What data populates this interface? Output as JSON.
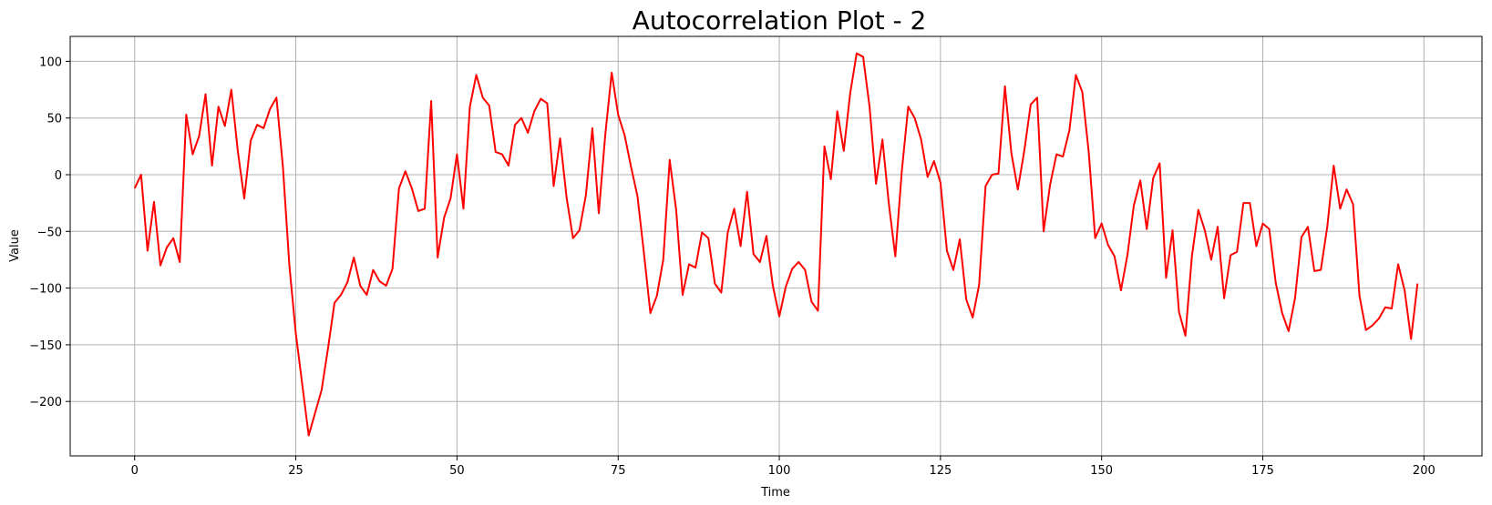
{
  "chart_data": {
    "type": "line",
    "title": "Autocorrelation Plot - 2",
    "xlabel": "Time",
    "ylabel": "Value",
    "xlim": [
      -10,
      209
    ],
    "ylim": [
      -248,
      122
    ],
    "xticks": [
      0,
      25,
      50,
      75,
      100,
      125,
      150,
      175,
      200
    ],
    "xtick_labels": [
      "0",
      "25",
      "50",
      "75",
      "100",
      "125",
      "150",
      "175",
      "200"
    ],
    "yticks": [
      100,
      50,
      0,
      -50,
      -100,
      -150,
      -200
    ],
    "ytick_labels": [
      "100",
      "50",
      "0",
      "−50",
      "−100",
      "−150",
      "−200"
    ],
    "grid": true,
    "legend": "none",
    "series": [
      {
        "color": "#ff0000",
        "x": [
          0,
          1,
          2,
          3,
          4,
          5,
          6,
          7,
          8,
          9,
          10,
          11,
          12,
          13,
          14,
          15,
          16,
          17,
          18,
          19,
          20,
          21,
          22,
          23,
          24,
          25,
          26,
          27,
          28,
          29,
          30,
          31,
          32,
          33,
          34,
          35,
          36,
          37,
          38,
          39,
          40,
          41,
          42,
          43,
          44,
          45,
          46,
          47,
          48,
          49,
          50,
          51,
          52,
          53,
          54,
          55,
          56,
          57,
          58,
          59,
          60,
          61,
          62,
          63,
          64,
          65,
          66,
          67,
          68,
          69,
          70,
          71,
          72,
          73,
          74,
          75,
          76,
          77,
          78,
          79,
          80,
          81,
          82,
          83,
          84,
          85,
          86,
          87,
          88,
          89,
          90,
          91,
          92,
          93,
          94,
          95,
          96,
          97,
          98,
          99,
          100,
          101,
          102,
          103,
          104,
          105,
          106,
          107,
          108,
          109,
          110,
          111,
          112,
          113,
          114,
          115,
          116,
          117,
          118,
          119,
          120,
          121,
          122,
          123,
          124,
          125,
          126,
          127,
          128,
          129,
          130,
          131,
          132,
          133,
          134,
          135,
          136,
          137,
          138,
          139,
          140,
          141,
          142,
          143,
          144,
          145,
          146,
          147,
          148,
          149,
          150,
          151,
          152,
          153,
          154,
          155,
          156,
          157,
          158,
          159,
          160,
          161,
          162,
          163,
          164,
          165,
          166,
          167,
          168,
          169,
          170,
          171,
          172,
          173,
          174,
          175,
          176,
          177,
          178,
          179,
          180,
          181,
          182,
          183,
          184,
          185,
          186,
          187,
          188,
          189,
          190,
          191,
          192,
          193,
          194,
          195,
          196,
          197,
          198,
          199
        ],
        "y": [
          -12,
          0,
          -67,
          -24,
          -80,
          -64,
          -56,
          -77,
          53,
          18,
          34,
          71,
          8,
          60,
          43,
          75,
          21,
          -21,
          30,
          44,
          41,
          58,
          68,
          7,
          -80,
          -140,
          -185,
          -230,
          -210,
          -190,
          -153,
          -113,
          -106,
          -95,
          -73,
          -98,
          -106,
          -84,
          -94,
          -98,
          -83,
          -12,
          3,
          -12,
          -32,
          -30,
          65,
          -73,
          -38,
          -21,
          18,
          -30,
          60,
          88,
          68,
          61,
          20,
          18,
          8,
          44,
          50,
          37,
          56,
          67,
          63,
          -10,
          32,
          -20,
          -56,
          -49,
          -18,
          41,
          -34,
          35,
          90,
          53,
          35,
          7,
          -19,
          -69,
          -122,
          -107,
          -75,
          13,
          -31,
          -106,
          -79,
          -82,
          -51,
          -56,
          -96,
          -104,
          -51,
          -30,
          -63,
          -15,
          -70,
          -77,
          -54,
          -98,
          -125,
          -99,
          -83,
          -77,
          -84,
          -112,
          -120,
          25,
          -4,
          56,
          21,
          72,
          107,
          104,
          60,
          -8,
          31,
          -26,
          -72,
          3,
          60,
          50,
          31,
          -2,
          12,
          -7,
          -67,
          -84,
          -57,
          -110,
          -126,
          -97,
          -10,
          0,
          1,
          78,
          19,
          -13,
          21,
          62,
          68,
          -50,
          -9,
          18,
          16,
          39,
          88,
          73,
          20,
          -56,
          -43,
          -62,
          -72,
          -102,
          -71,
          -27,
          -5,
          -48,
          -3,
          10,
          -91,
          -49,
          -121,
          -142,
          -72,
          -31,
          -49,
          -75,
          -46,
          -109,
          -71,
          -68,
          -25,
          -25,
          -63,
          -43,
          -48,
          -95,
          -122,
          -138,
          -109,
          -55,
          -46,
          -85,
          -84,
          -46,
          8,
          -30,
          -13,
          -26,
          -107,
          -137,
          -133,
          -127,
          -117,
          -118,
          -79,
          -102,
          -145,
          -96
        ]
      }
    ]
  }
}
